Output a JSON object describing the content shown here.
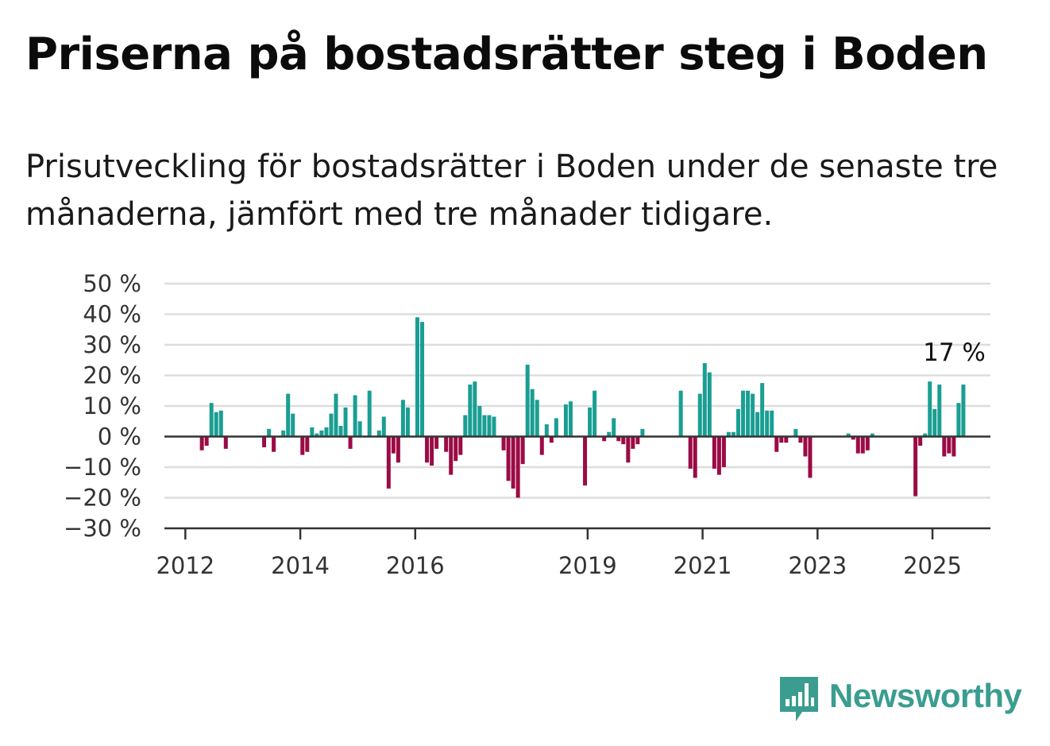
{
  "title": "Priserna på bostadsrätter steg i Boden",
  "subtitle": "Prisutveckling för bostadsrätter i Boden under de senaste tre månaderna, jämfört med tre månader tidigare.",
  "brand": {
    "name": "Newsworthy",
    "icon": "newsworthy-logo-icon",
    "color": "#3a9d8f"
  },
  "colors": {
    "positive": "#1a9e93",
    "negative": "#9b0b45",
    "grid": "#dddddd",
    "axis": "#333333"
  },
  "chart_data": {
    "type": "bar",
    "title": "",
    "xlabel": "",
    "ylabel": "",
    "ylim": [
      -30,
      50
    ],
    "y_ticks": [
      -30,
      -20,
      -10,
      0,
      10,
      20,
      30,
      40,
      50
    ],
    "y_tick_labels": [
      "−30 %",
      "−20 %",
      "−10 %",
      "0 %",
      "10 %",
      "20 %",
      "30 %",
      "40 %",
      "50 %"
    ],
    "x_ticks": [
      {
        "year": 2012,
        "label": "2012"
      },
      {
        "year": 2014,
        "label": "2014"
      },
      {
        "year": 2016,
        "label": "2016"
      },
      {
        "year": 2019,
        "label": "2019"
      },
      {
        "year": 2021,
        "label": "2021"
      },
      {
        "year": 2023,
        "label": "2023"
      },
      {
        "year": 2025,
        "label": "2025"
      }
    ],
    "x_start": {
      "year": 2011,
      "month": 11
    },
    "grid": true,
    "legend": "none",
    "annotation": {
      "label": "17 %",
      "year": 2025,
      "month": 5,
      "value": 17
    },
    "series": [
      {
        "values": [
          [
            2012,
            1,
            null
          ],
          [
            2012,
            2,
            null
          ],
          [
            2012,
            3,
            null
          ],
          [
            2012,
            4,
            -4.5
          ],
          [
            2012,
            5,
            -3
          ],
          [
            2012,
            6,
            11
          ],
          [
            2012,
            7,
            8
          ],
          [
            2012,
            8,
            8.5
          ],
          [
            2012,
            9,
            -4
          ],
          [
            2012,
            10,
            null
          ],
          [
            2012,
            11,
            null
          ],
          [
            2012,
            12,
            null
          ],
          [
            2013,
            1,
            null
          ],
          [
            2013,
            2,
            null
          ],
          [
            2013,
            3,
            null
          ],
          [
            2013,
            4,
            null
          ],
          [
            2013,
            5,
            -3.5
          ],
          [
            2013,
            6,
            2.5
          ],
          [
            2013,
            7,
            -5
          ],
          [
            2013,
            8,
            null
          ],
          [
            2013,
            9,
            2
          ],
          [
            2013,
            10,
            14
          ],
          [
            2013,
            11,
            7.5
          ],
          [
            2013,
            12,
            null
          ],
          [
            2014,
            1,
            -6
          ],
          [
            2014,
            2,
            -5
          ],
          [
            2014,
            3,
            3
          ],
          [
            2014,
            4,
            1
          ],
          [
            2014,
            5,
            2
          ],
          [
            2014,
            6,
            3
          ],
          [
            2014,
            7,
            7.5
          ],
          [
            2014,
            8,
            14
          ],
          [
            2014,
            9,
            3.5
          ],
          [
            2014,
            10,
            9.5
          ],
          [
            2014,
            11,
            -4
          ],
          [
            2014,
            12,
            13.5
          ],
          [
            2015,
            1,
            5
          ],
          [
            2015,
            2,
            null
          ],
          [
            2015,
            3,
            15
          ],
          [
            2015,
            4,
            null
          ],
          [
            2015,
            5,
            2
          ],
          [
            2015,
            6,
            6.5
          ],
          [
            2015,
            7,
            -17
          ],
          [
            2015,
            8,
            -5.5
          ],
          [
            2015,
            9,
            -8.5
          ],
          [
            2015,
            10,
            12
          ],
          [
            2015,
            11,
            9.5
          ],
          [
            2015,
            12,
            null
          ],
          [
            2016,
            1,
            39
          ],
          [
            2016,
            2,
            37.5
          ],
          [
            2016,
            3,
            -8.5
          ],
          [
            2016,
            4,
            -9.5
          ],
          [
            2016,
            5,
            -4
          ],
          [
            2016,
            6,
            null
          ],
          [
            2016,
            7,
            -5
          ],
          [
            2016,
            8,
            -12.5
          ],
          [
            2016,
            9,
            -8
          ],
          [
            2016,
            10,
            -6
          ],
          [
            2016,
            11,
            7
          ],
          [
            2016,
            12,
            17
          ],
          [
            2017,
            1,
            18
          ],
          [
            2017,
            2,
            10
          ],
          [
            2017,
            3,
            7
          ],
          [
            2017,
            4,
            7
          ],
          [
            2017,
            5,
            6.5
          ],
          [
            2017,
            6,
            null
          ],
          [
            2017,
            7,
            -4.5
          ],
          [
            2017,
            8,
            -14.5
          ],
          [
            2017,
            9,
            -17
          ],
          [
            2017,
            10,
            -20
          ],
          [
            2017,
            11,
            -9
          ],
          [
            2017,
            12,
            23.5
          ],
          [
            2018,
            1,
            15.5
          ],
          [
            2018,
            2,
            12
          ],
          [
            2018,
            3,
            -6
          ],
          [
            2018,
            4,
            4
          ],
          [
            2018,
            5,
            -2
          ],
          [
            2018,
            6,
            6
          ],
          [
            2018,
            7,
            null
          ],
          [
            2018,
            8,
            10.5
          ],
          [
            2018,
            9,
            11.5
          ],
          [
            2018,
            10,
            null
          ],
          [
            2018,
            11,
            null
          ],
          [
            2018,
            12,
            -16
          ],
          [
            2019,
            1,
            9.5
          ],
          [
            2019,
            2,
            15
          ],
          [
            2019,
            3,
            null
          ],
          [
            2019,
            4,
            -1.5
          ],
          [
            2019,
            5,
            1.5
          ],
          [
            2019,
            6,
            6
          ],
          [
            2019,
            7,
            -1.5
          ],
          [
            2019,
            8,
            -2.5
          ],
          [
            2019,
            9,
            -8.5
          ],
          [
            2019,
            10,
            -4
          ],
          [
            2019,
            11,
            -2.5
          ],
          [
            2019,
            12,
            2.5
          ],
          [
            2020,
            1,
            null
          ],
          [
            2020,
            2,
            null
          ],
          [
            2020,
            3,
            null
          ],
          [
            2020,
            4,
            null
          ],
          [
            2020,
            5,
            null
          ],
          [
            2020,
            6,
            null
          ],
          [
            2020,
            7,
            null
          ],
          [
            2020,
            8,
            15
          ],
          [
            2020,
            9,
            null
          ],
          [
            2020,
            10,
            -10.5
          ],
          [
            2020,
            11,
            -13.5
          ],
          [
            2020,
            12,
            14
          ],
          [
            2021,
            1,
            24
          ],
          [
            2021,
            2,
            21
          ],
          [
            2021,
            3,
            -10.5
          ],
          [
            2021,
            4,
            -12.5
          ],
          [
            2021,
            5,
            -10
          ],
          [
            2021,
            6,
            1.5
          ],
          [
            2021,
            7,
            1.5
          ],
          [
            2021,
            8,
            9
          ],
          [
            2021,
            9,
            15
          ],
          [
            2021,
            10,
            15
          ],
          [
            2021,
            11,
            14
          ],
          [
            2021,
            12,
            8
          ],
          [
            2022,
            1,
            17.5
          ],
          [
            2022,
            2,
            8.5
          ],
          [
            2022,
            3,
            8.5
          ],
          [
            2022,
            4,
            -5
          ],
          [
            2022,
            5,
            -2
          ],
          [
            2022,
            6,
            -2
          ],
          [
            2022,
            7,
            null
          ],
          [
            2022,
            8,
            2.5
          ],
          [
            2022,
            9,
            -2
          ],
          [
            2022,
            10,
            -6.5
          ],
          [
            2022,
            11,
            -13.5
          ],
          [
            2022,
            12,
            null
          ],
          [
            2023,
            1,
            null
          ],
          [
            2023,
            2,
            null
          ],
          [
            2023,
            3,
            null
          ],
          [
            2023,
            4,
            null
          ],
          [
            2023,
            5,
            null
          ],
          [
            2023,
            6,
            null
          ],
          [
            2023,
            7,
            1
          ],
          [
            2023,
            8,
            -1
          ],
          [
            2023,
            9,
            -5.5
          ],
          [
            2023,
            10,
            -5.5
          ],
          [
            2023,
            11,
            -4.5
          ],
          [
            2023,
            12,
            1
          ],
          [
            2024,
            1,
            null
          ],
          [
            2024,
            2,
            null
          ],
          [
            2024,
            3,
            null
          ],
          [
            2024,
            4,
            null
          ],
          [
            2024,
            5,
            null
          ],
          [
            2024,
            6,
            null
          ],
          [
            2024,
            7,
            null
          ],
          [
            2024,
            8,
            null
          ],
          [
            2024,
            9,
            -19.5
          ],
          [
            2024,
            10,
            -3
          ],
          [
            2024,
            11,
            1
          ],
          [
            2024,
            12,
            18
          ],
          [
            2025,
            1,
            9
          ],
          [
            2025,
            2,
            17
          ],
          [
            2025,
            3,
            -6.5
          ],
          [
            2025,
            4,
            -5.5
          ],
          [
            2025,
            5,
            -6.5
          ],
          [
            2025,
            6,
            11
          ],
          [
            2025,
            7,
            17
          ]
        ]
      }
    ]
  }
}
